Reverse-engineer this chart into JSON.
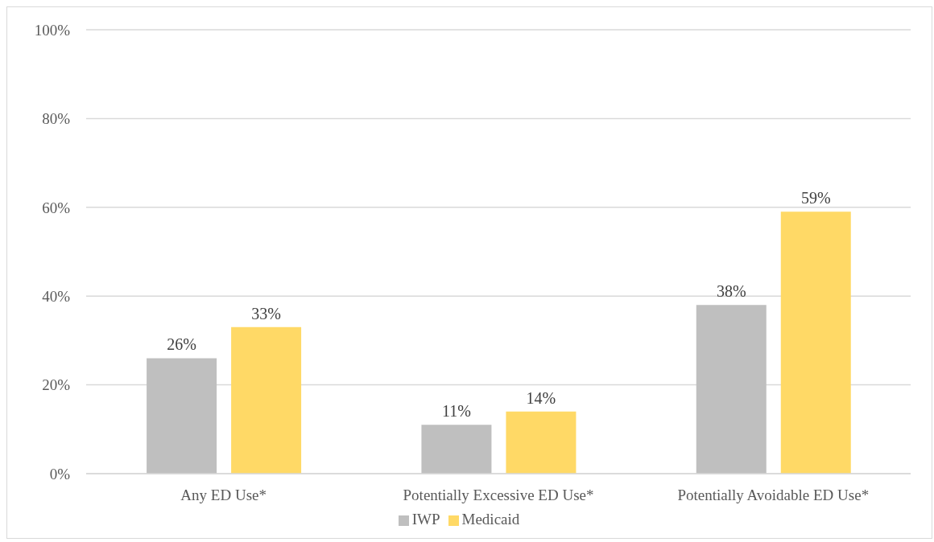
{
  "chart_data": {
    "type": "bar",
    "categories": [
      "Any ED Use*",
      "Potentially Excessive ED Use*",
      "Potentially Avoidable ED Use*"
    ],
    "series": [
      {
        "name": "IWP",
        "color": "#bfbfbf",
        "values": [
          26,
          11,
          38
        ],
        "value_labels": [
          "26%",
          "11%",
          "38%"
        ]
      },
      {
        "name": "Medicaid",
        "color": "#ffd966",
        "values": [
          33,
          14,
          59
        ],
        "value_labels": [
          "33%",
          "14%",
          "59%"
        ]
      }
    ],
    "ylim": [
      0,
      100
    ],
    "yticks": [
      {
        "value": 0,
        "label": "0%"
      },
      {
        "value": 20,
        "label": "20%"
      },
      {
        "value": 40,
        "label": "40%"
      },
      {
        "value": 60,
        "label": "60%"
      },
      {
        "value": 80,
        "label": "80%"
      },
      {
        "value": 100,
        "label": "100%"
      }
    ],
    "grid": "y",
    "legend": "bottom"
  }
}
